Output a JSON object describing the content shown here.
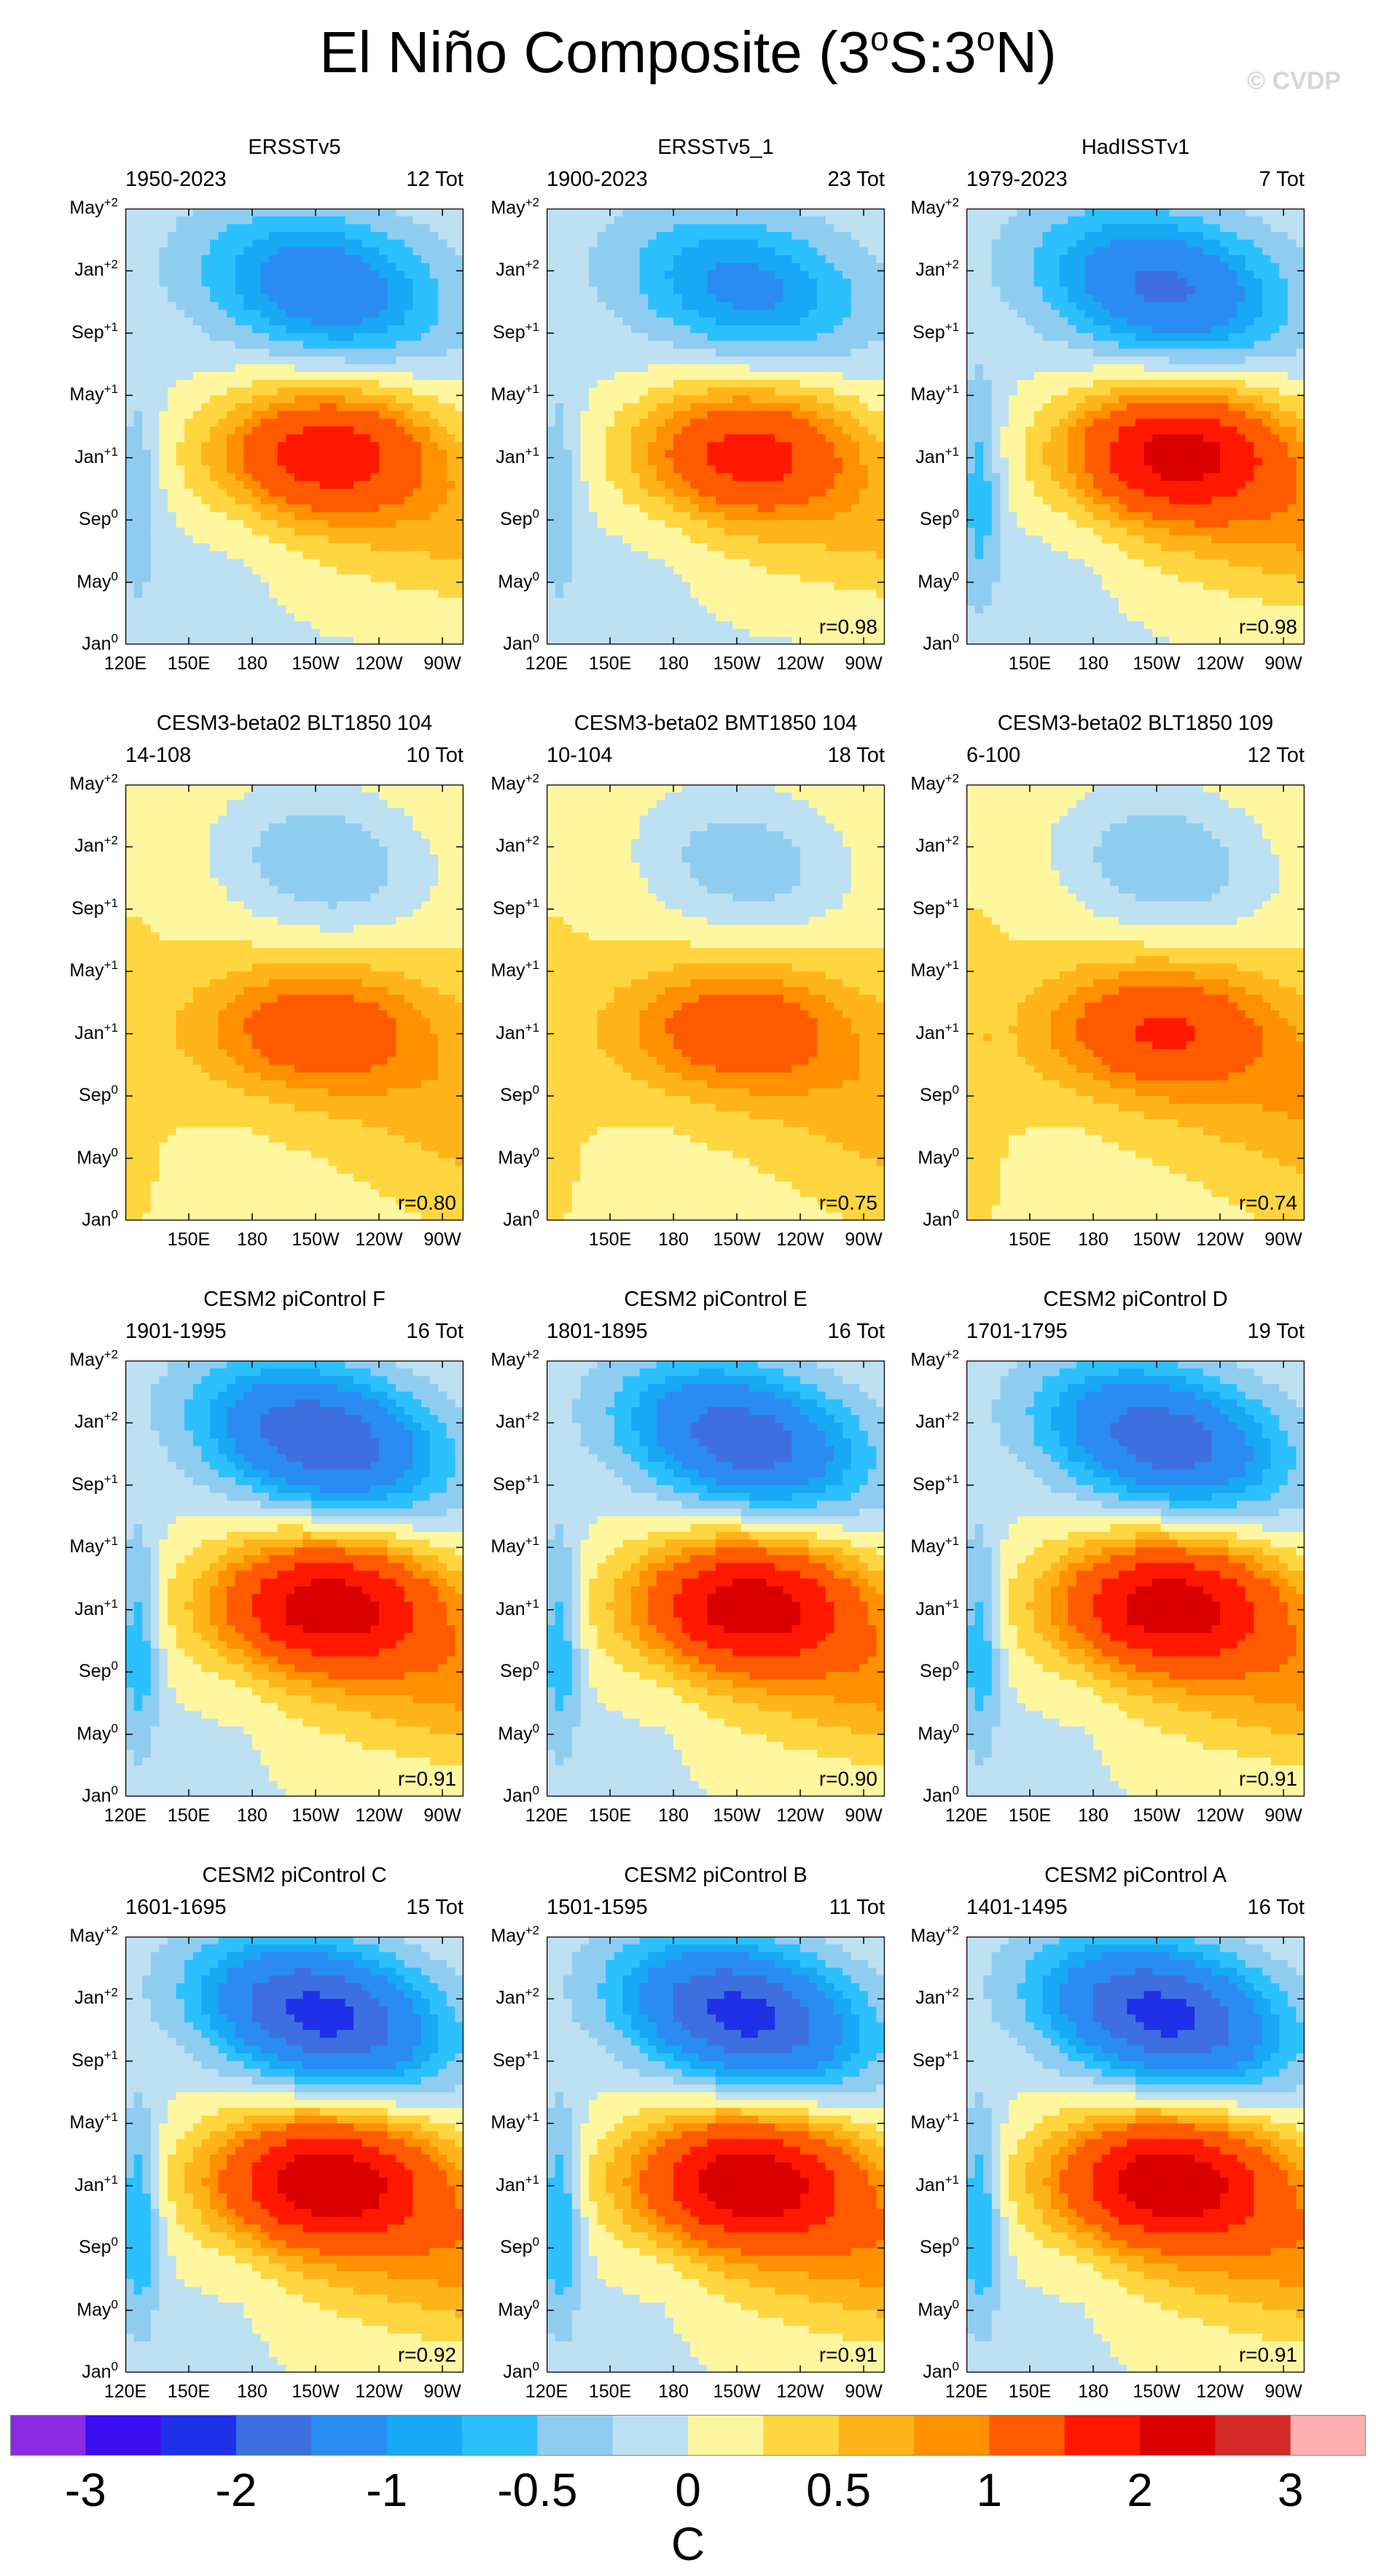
{
  "title": {
    "text": "El Niño Composite (3",
    "deg1": "o",
    "mid": "S:3",
    "deg2": "o",
    "end": "N)"
  },
  "watermark": "© CVDP",
  "chart_data": {
    "type": "heatmap",
    "title": "El Niño Composite (3oS:3oN)",
    "units": "C",
    "x_axis": {
      "range_deg_east": [
        120,
        280
      ],
      "tick_values_deg_east": [
        120,
        150,
        180,
        210,
        240,
        270
      ],
      "tick_labels": [
        "120E",
        "150E",
        "180",
        "150W",
        "120W",
        "90W"
      ]
    },
    "y_axis": {
      "range_months": [
        0,
        28
      ],
      "tick_values_months": [
        0,
        4,
        8,
        12,
        16,
        20,
        24,
        28
      ],
      "tick_labels": [
        {
          "m": "Jan",
          "s": "0"
        },
        {
          "m": "May",
          "s": "0"
        },
        {
          "m": "Sep",
          "s": "0"
        },
        {
          "m": "Jan",
          "s": "+1"
        },
        {
          "m": "May",
          "s": "+1"
        },
        {
          "m": "Sep",
          "s": "+1"
        },
        {
          "m": "Jan",
          "s": "+2"
        },
        {
          "m": "May",
          "s": "+2"
        }
      ]
    },
    "colorbar": {
      "colors": [
        "#8a2be2",
        "#3a0ef0",
        "#1f30e8",
        "#3e6fe0",
        "#2a8cf2",
        "#19a8f5",
        "#2cc0ff",
        "#8fcdf0",
        "#bde0f2",
        "#fff7a0",
        "#ffd640",
        "#ffb41a",
        "#ff9000",
        "#ff5a00",
        "#ff1800",
        "#da0000",
        "#d52a2a",
        "#ffb0b0"
      ],
      "tick_labels": [
        "-3",
        "-2",
        "-1",
        "-0.5",
        "0",
        "0.5",
        "1",
        "2",
        "3"
      ],
      "label": "C"
    },
    "panels": [
      {
        "name": "ERSSTv5",
        "years": "1950-2023",
        "events": "12 Tot",
        "r": null,
        "show_120E": true,
        "features": {
          "east_pos": 1.8,
          "east_x_deg": 215,
          "west_neg": -0.4,
          "later_neg": -1.1,
          "tilt": 0.45,
          "bg": -0.1
        }
      },
      {
        "name": "ERSSTv5_1",
        "years": "1900-2023",
        "events": "23 Tot",
        "r": "r=0.98",
        "show_120E": true,
        "features": {
          "east_pos": 1.7,
          "east_x_deg": 215,
          "west_neg": -0.4,
          "later_neg": -0.9,
          "tilt": 0.45,
          "bg": -0.1
        }
      },
      {
        "name": "HadISSTv1",
        "years": "1979-2023",
        "events": "7 Tot",
        "r": "r=0.98",
        "show_120E": false,
        "features": {
          "east_pos": 2.2,
          "east_x_deg": 220,
          "west_neg": -0.6,
          "later_neg": -1.3,
          "tilt": 0.5,
          "bg": -0.1
        }
      },
      {
        "name": "CESM3-beta02 BLT1850 104",
        "years": "14-108",
        "events": "10 Tot",
        "r": "r=0.80",
        "show_120E": false,
        "features": {
          "east_pos": 1.2,
          "east_x_deg": 210,
          "west_neg": 0.1,
          "later_neg": -0.5,
          "tilt": 0.35,
          "bg": 0.25
        }
      },
      {
        "name": "CESM3-beta02 BMT1850 104",
        "years": "10-104",
        "events": "18 Tot",
        "r": "r=0.75",
        "show_120E": false,
        "features": {
          "east_pos": 1.2,
          "east_x_deg": 210,
          "west_neg": 0.1,
          "later_neg": -0.45,
          "tilt": 0.35,
          "bg": 0.25
        }
      },
      {
        "name": "CESM3-beta02 BLT1850 109",
        "years": "6-100",
        "events": "12 Tot",
        "r": "r=0.74",
        "show_120E": false,
        "features": {
          "east_pos": 1.4,
          "east_x_deg": 212,
          "west_neg": 0.15,
          "later_neg": -0.5,
          "tilt": 0.35,
          "bg": 0.25
        }
      },
      {
        "name": "CESM2 piControl F",
        "years": "1901-1995",
        "events": "16 Tot",
        "r": "r=0.91",
        "show_120E": true,
        "features": {
          "east_pos": 2.3,
          "east_x_deg": 215,
          "west_neg": -0.7,
          "later_neg": -1.6,
          "tilt": 0.6,
          "bg": -0.05
        }
      },
      {
        "name": "CESM2 piControl E",
        "years": "1801-1895",
        "events": "16 Tot",
        "r": "r=0.90",
        "show_120E": true,
        "features": {
          "east_pos": 2.3,
          "east_x_deg": 215,
          "west_neg": -0.7,
          "later_neg": -1.5,
          "tilt": 0.6,
          "bg": -0.05
        }
      },
      {
        "name": "CESM2 piControl D",
        "years": "1701-1795",
        "events": "19 Tot",
        "r": "r=0.91",
        "show_120E": true,
        "features": {
          "east_pos": 2.3,
          "east_x_deg": 215,
          "west_neg": -0.7,
          "later_neg": -1.5,
          "tilt": 0.6,
          "bg": -0.05
        }
      },
      {
        "name": "CESM2 piControl C",
        "years": "1601-1695",
        "events": "15 Tot",
        "r": "r=0.92",
        "show_120E": true,
        "features": {
          "east_pos": 2.4,
          "east_x_deg": 215,
          "west_neg": -0.8,
          "later_neg": -1.8,
          "tilt": 0.6,
          "bg": -0.05
        }
      },
      {
        "name": "CESM2 piControl B",
        "years": "1501-1595",
        "events": "11 Tot",
        "r": "r=0.91",
        "show_120E": true,
        "features": {
          "east_pos": 2.4,
          "east_x_deg": 215,
          "west_neg": -0.8,
          "later_neg": -1.8,
          "tilt": 0.6,
          "bg": -0.05
        }
      },
      {
        "name": "CESM2 piControl A",
        "years": "1401-1495",
        "events": "16 Tot",
        "r": "r=0.91",
        "show_120E": true,
        "features": {
          "east_pos": 2.4,
          "east_x_deg": 215,
          "west_neg": -0.8,
          "later_neg": -1.8,
          "tilt": 0.6,
          "bg": -0.05
        }
      }
    ]
  }
}
